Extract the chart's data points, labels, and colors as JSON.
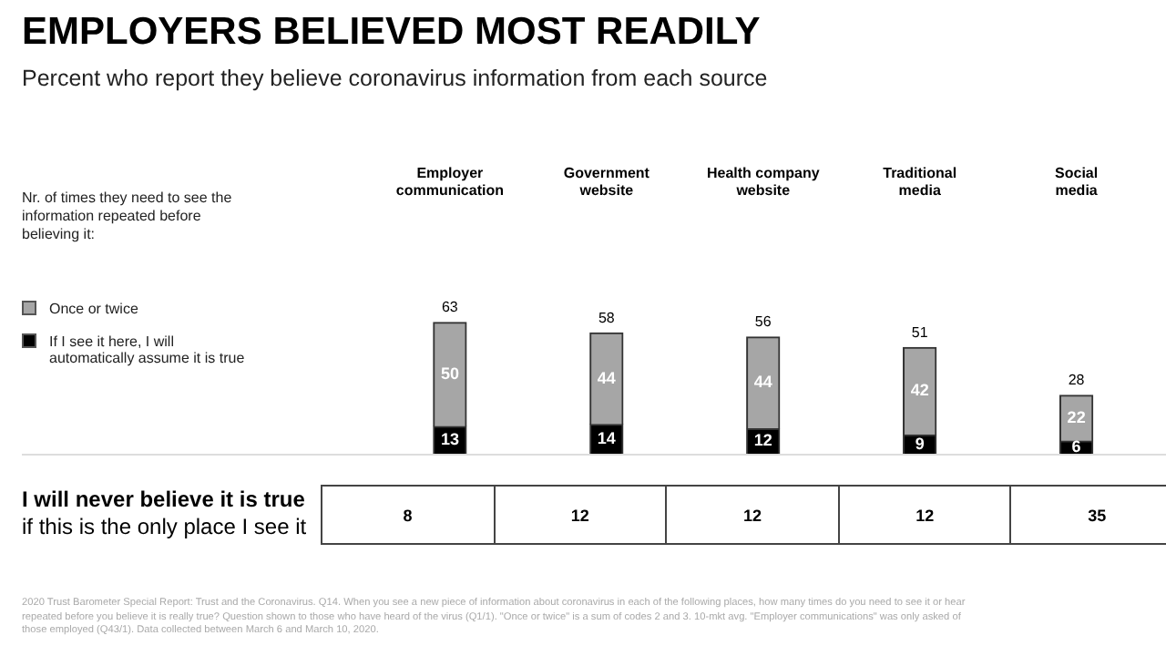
{
  "chart_data": {
    "type": "bar",
    "title": "EMPLOYERS BELIEVED MOST READILY",
    "subtitle": "Percent who report they believe coronavirus information from each source",
    "legend_title": "Nr. of times they need to see the information repeated before believing it:",
    "categories": [
      "Employer communication",
      "Government website",
      "Health company website",
      "Traditional media",
      "Social media"
    ],
    "stacked": true,
    "data_labels": true,
    "legend": "left",
    "series": [
      {
        "name": "If I see it here, I will automatically assume it is true",
        "color": "#000000",
        "values": [
          13,
          14,
          12,
          9,
          6
        ]
      },
      {
        "name": "Once or twice",
        "color": "#a6a6a6",
        "values": [
          50,
          44,
          44,
          42,
          22
        ]
      }
    ],
    "totals": [
      "63",
      "58",
      "56",
      "51",
      "28"
    ],
    "annotations": [
      "I will never believe it is true",
      "if this is the only place I see it",
      "8",
      "12",
      "12",
      "12",
      "35",
      "2020 Trust Barometer Special Report: Trust and the Coronavirus. Q14. When you see a new piece of information about coronavirus in each of the following places, how many times do you need to see it or hear repeated before you believe it is really true? Question shown to those who have heard of the virus (Q1/1). \"Once or twice\" is a sum of codes 2 and 3. 10-mkt avg. \"Employer communications\" was only asked of those employed (Q43/1). Data collected between March 6 and March 10, 2020."
    ]
  }
}
